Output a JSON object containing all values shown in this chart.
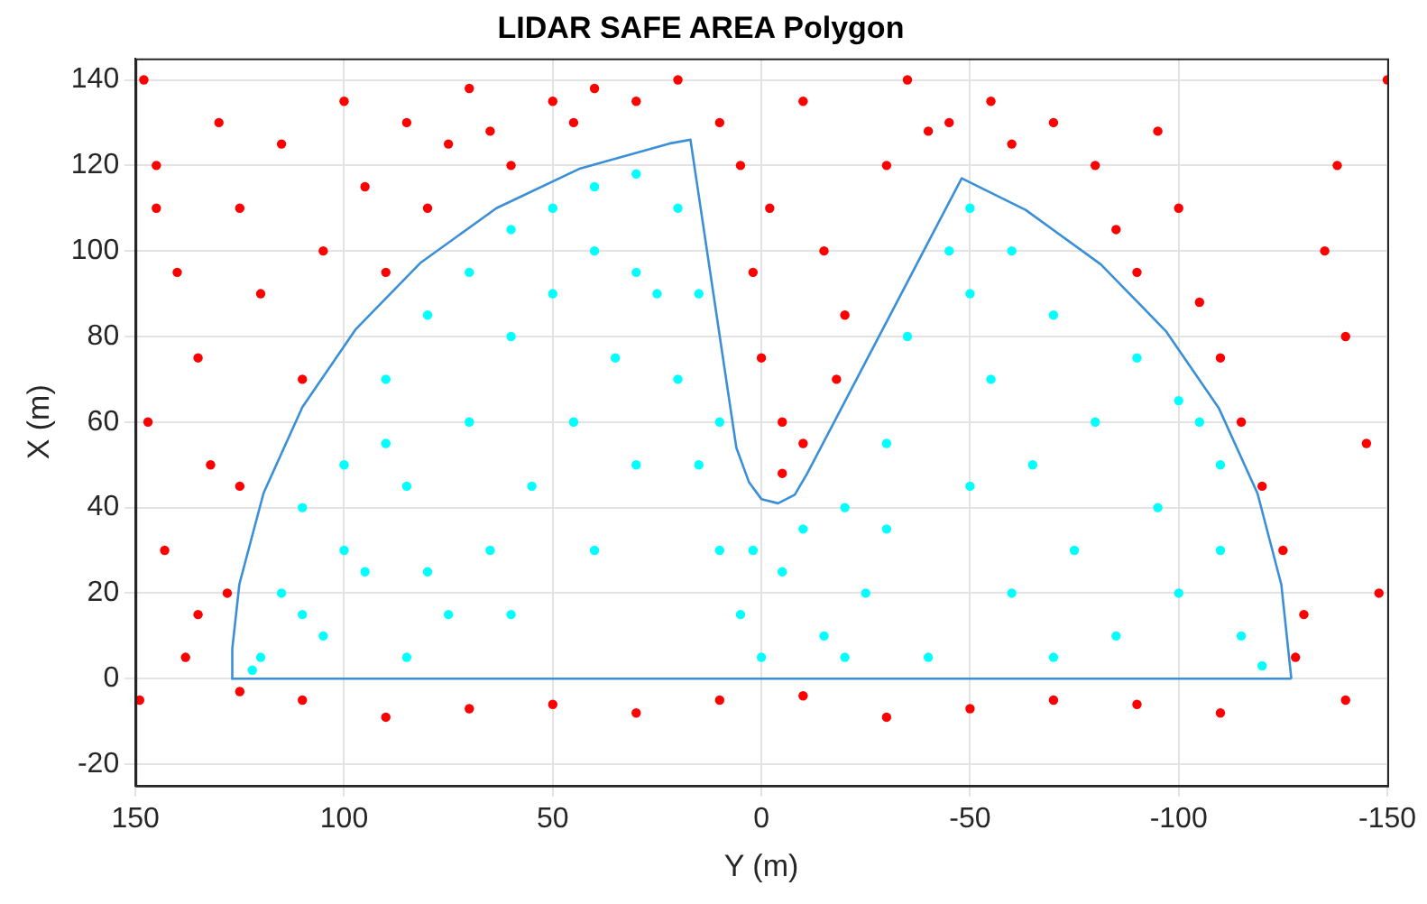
{
  "chart_data": {
    "type": "scatter",
    "title": "LIDAR SAFE AREA Polygon",
    "xlabel": "Y (m)",
    "ylabel": "X (m)",
    "xlim": [
      150,
      -150
    ],
    "xticks": [
      150,
      100,
      50,
      0,
      -50,
      -100,
      -150
    ],
    "ylim": [
      -25,
      145
    ],
    "yticks": [
      -20,
      0,
      20,
      40,
      60,
      80,
      100,
      120,
      140
    ],
    "grid": true,
    "legend": false,
    "marker": "circle",
    "series": [
      {
        "color": "#ff0000",
        "x": [
          148,
          145,
          140,
          147,
          135,
          143,
          138,
          149,
          130,
          125,
          132,
          128,
          120,
          115,
          110,
          105,
          100,
          95,
          90,
          85,
          80,
          75,
          70,
          65,
          60,
          50,
          45,
          40,
          30,
          20,
          10,
          5,
          2,
          0,
          -5,
          -2,
          -10,
          -15,
          -20,
          -18,
          -30,
          -35,
          -40,
          -45,
          -55,
          -60,
          -70,
          -80,
          -85,
          -90,
          -95,
          -100,
          -105,
          -110,
          -115,
          -120,
          -125,
          -130,
          -135,
          -140,
          -145,
          -148,
          -150,
          -138,
          -128,
          -140,
          -110,
          -90,
          -70,
          -50,
          -30,
          -10,
          10,
          30,
          50,
          70,
          90,
          110,
          125,
          -10,
          -5,
          145,
          125,
          135
        ],
        "values": [
          140,
          120,
          95,
          60,
          75,
          30,
          5,
          -5,
          130,
          110,
          50,
          20,
          90,
          125,
          70,
          100,
          135,
          115,
          95,
          130,
          110,
          125,
          138,
          128,
          120,
          135,
          130,
          138,
          135,
          140,
          130,
          120,
          95,
          75,
          60,
          110,
          135,
          100,
          85,
          70,
          120,
          140,
          128,
          130,
          135,
          125,
          130,
          120,
          105,
          95,
          128,
          110,
          88,
          75,
          60,
          45,
          30,
          15,
          100,
          80,
          55,
          20,
          140,
          120,
          5,
          -5,
          -8,
          -6,
          -5,
          -7,
          -9,
          -4,
          -5,
          -8,
          -6,
          -7,
          -9,
          -5,
          -3,
          55,
          48,
          110,
          45,
          15
        ]
      },
      {
        "color": "#00ffff",
        "x": [
          120,
          115,
          110,
          100,
          90,
          80,
          70,
          60,
          50,
          40,
          30,
          20,
          25,
          35,
          45,
          55,
          65,
          75,
          85,
          95,
          105,
          100,
          85,
          70,
          60,
          50,
          40,
          30,
          20,
          15,
          10,
          5,
          0,
          -5,
          -10,
          2,
          -15,
          -20,
          -25,
          -30,
          -35,
          -45,
          -50,
          -50,
          -55,
          -60,
          -65,
          -70,
          -75,
          -80,
          -85,
          -90,
          -95,
          -100,
          -105,
          -110,
          -115,
          -120,
          -100,
          -110,
          -60,
          -40,
          -30,
          -70,
          -50,
          -20,
          10,
          15,
          110,
          122,
          60,
          40,
          30,
          80,
          90
        ],
        "values": [
          5,
          20,
          40,
          50,
          70,
          85,
          95,
          105,
          110,
          115,
          118,
          110,
          90,
          75,
          60,
          45,
          30,
          15,
          5,
          25,
          10,
          30,
          45,
          60,
          80,
          90,
          100,
          95,
          70,
          50,
          30,
          15,
          5,
          25,
          35,
          30,
          10,
          40,
          20,
          55,
          80,
          100,
          110,
          90,
          70,
          100,
          50,
          85,
          30,
          60,
          10,
          75,
          40,
          20,
          60,
          30,
          10,
          3,
          65,
          50,
          20,
          5,
          35,
          5,
          45,
          5,
          60,
          90,
          15,
          2,
          15,
          30,
          50,
          25,
          55
        ]
      },
      {
        "type": "line",
        "color": "#3a8fd9",
        "marker": "none",
        "x": [
          127,
          126.8,
          125.1,
          119.3,
          110,
          97.3,
          81.6,
          63.5,
          43.4,
          22.1,
          17,
          6,
          3,
          0,
          -4,
          -8,
          -11,
          -48,
          -63.3,
          -81.3,
          -96.9,
          -109.6,
          -118.9,
          -124.6,
          -127
        ],
        "values": [
          0,
          7,
          22.1,
          43.4,
          63.5,
          81.6,
          97.3,
          110,
          119.3,
          125.1,
          126,
          54,
          46,
          42,
          41,
          43,
          48,
          117,
          109.6,
          96.9,
          81.3,
          63.3,
          43.3,
          22,
          0
        ]
      },
      {
        "type": "line",
        "color": "#3a8fd9",
        "marker": "none",
        "x": [
          127,
          -127
        ],
        "values": [
          0,
          0
        ]
      }
    ]
  }
}
